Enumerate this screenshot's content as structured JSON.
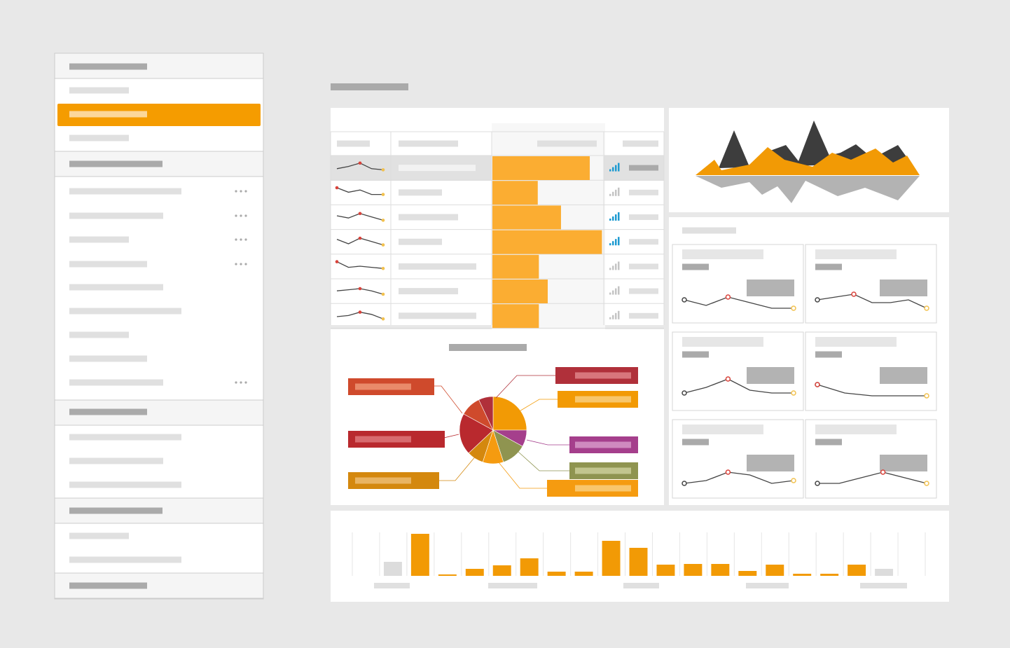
{
  "table": {
    "max": 100,
    "bars": [
      88,
      41,
      62,
      99,
      42,
      50,
      42
    ],
    "signal_active": [
      true,
      false,
      true,
      true,
      false,
      false,
      false
    ],
    "sparklines": [
      [
        3,
        5,
        8,
        3,
        2
      ],
      [
        8,
        4,
        6,
        2,
        2
      ],
      [
        5,
        3,
        7,
        4,
        1
      ],
      [
        6,
        2,
        7,
        4,
        1
      ],
      [
        8,
        3,
        4,
        3,
        2
      ],
      [
        4,
        5,
        6,
        4,
        1
      ],
      [
        3,
        4,
        7,
        5,
        1
      ]
    ]
  },
  "pie": {
    "values": [
      25,
      8,
      12,
      10,
      8,
      20,
      10,
      7
    ],
    "colors": [
      "#f29a05",
      "#a53f8c",
      "#8f9450",
      "#f59b10",
      "#d4880e",
      "#b9292e",
      "#cf4a2c",
      "#b0303a"
    ]
  },
  "cards": [
    [
      4,
      2,
      5,
      3,
      1,
      1
    ],
    [
      4,
      5,
      6,
      3,
      3,
      4,
      1
    ],
    [
      2,
      4,
      7,
      3,
      2,
      2
    ],
    [
      5,
      2,
      1,
      1,
      1
    ],
    [
      1,
      2,
      5,
      4,
      1,
      2
    ],
    [
      1,
      1,
      3,
      5,
      3,
      1
    ]
  ],
  "bar_chart": {
    "ylim": [
      0,
      65
    ],
    "values": [
      0,
      20,
      60,
      2,
      10,
      15,
      25,
      6,
      6,
      50,
      40,
      16,
      17,
      17,
      7,
      16,
      3,
      3,
      16,
      10,
      0
    ],
    "colors": [
      "#f29a05",
      "#dcdcdc",
      "#f29a05",
      "#f29a05",
      "#f29a05",
      "#f29a05",
      "#f29a05",
      "#f29a05",
      "#f29a05",
      "#f29a05",
      "#f29a05",
      "#f29a05",
      "#f29a05",
      "#f29a05",
      "#f29a05",
      "#f29a05",
      "#f29a05",
      "#f29a05",
      "#f29a05",
      "#dcdcdc",
      "#f29a05"
    ]
  }
}
